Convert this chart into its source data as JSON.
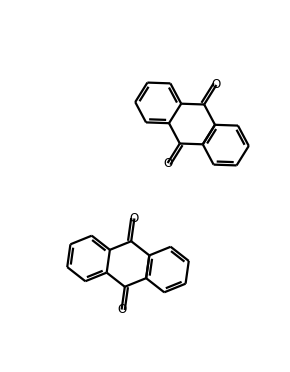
{
  "bg": "#ffffff",
  "lc": "#000000",
  "lw": 1.6,
  "BL": 23,
  "figsize": [
    2.9,
    3.72
  ],
  "dpi": 100,
  "xlim": [
    0,
    290
  ],
  "ylim": [
    0,
    372
  ]
}
